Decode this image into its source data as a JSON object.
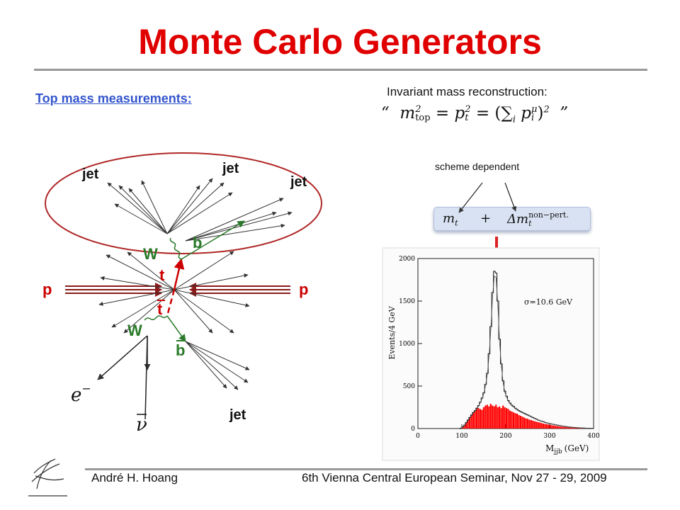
{
  "slide": {
    "title": "Monte Carlo Generators",
    "subtitle": "Top mass measurements:",
    "invariant_mass_label": "Invariant mass reconstruction:",
    "formula": {
      "open_quote": "“",
      "close_quote": "”",
      "m": "m",
      "m_sup": "2",
      "m_sub": "top",
      "eq": "=",
      "p": "p",
      "p_sub": "t",
      "p_sup": "2",
      "sum_open": "(∑",
      "sum_sub": "i",
      "p2": "p",
      "p2_sup": "μ",
      "p2_sub": "i",
      "close": ")",
      "close_sup": "2"
    },
    "scheme_label": "scheme dependent",
    "mass_expression": {
      "mt": "m",
      "mt_sub": "t",
      "plus": "+",
      "dmt": "Δm",
      "dmt_sub": "t",
      "dmt_sup": "non−pert."
    },
    "footer": {
      "author": "André H. Hoang",
      "seminar": "6th Vienna Central European Seminar, Nov 27 - 29, 2009"
    }
  },
  "diagram": {
    "labels": {
      "jet1": "jet",
      "jet2": "jet",
      "jet3": "jet",
      "jet4": "jet",
      "b": "b",
      "bbar": "b",
      "W1": "W",
      "W2": "W",
      "t": "t",
      "tbar": "t",
      "p_left": "p",
      "p_right": "p",
      "electron": "e",
      "electron_sup": "−",
      "neutrino": "ν"
    },
    "colors": {
      "ellipse": "#b02828",
      "beam": "#8b1a1a",
      "top": "#cc0000",
      "quark": "#2a7a2a",
      "lines": "#333333"
    }
  },
  "chart_data": {
    "type": "histogram",
    "annotation": "σ=10.6 GeV",
    "xlabel": "M",
    "xlabel_sub": "jjb",
    "xlabel_unit": "(GeV)",
    "ylabel": "Events/4 GeV",
    "xlim": [
      0,
      400
    ],
    "ylim": [
      0,
      2000
    ],
    "xticks": [
      "0",
      "100",
      "200",
      "300",
      "400"
    ],
    "yticks": [
      "0",
      "500",
      "1000",
      "1500",
      "2000"
    ],
    "bin_width": 4,
    "series": [
      {
        "style": "outline",
        "color": "#111111",
        "x": [
          96,
          100,
          104,
          108,
          112,
          116,
          120,
          124,
          128,
          132,
          136,
          140,
          144,
          148,
          152,
          156,
          160,
          164,
          168,
          172,
          176,
          180,
          184,
          188,
          192,
          196,
          200,
          204,
          208,
          212,
          216,
          220,
          224,
          228,
          232,
          236,
          240,
          244,
          248,
          252,
          256,
          260,
          264,
          268,
          272,
          276,
          280,
          284,
          288,
          292,
          296,
          300,
          304,
          308,
          312,
          316,
          320,
          324,
          328,
          332,
          336,
          340,
          344,
          348,
          352,
          356,
          360,
          364,
          368,
          372,
          376,
          380,
          384,
          388,
          392,
          396
        ],
        "values": [
          5,
          20,
          40,
          70,
          100,
          130,
          160,
          190,
          210,
          240,
          270,
          310,
          360,
          420,
          520,
          650,
          880,
          1200,
          1600,
          1850,
          1830,
          1500,
          1050,
          760,
          560,
          440,
          380,
          330,
          300,
          275,
          260,
          240,
          225,
          210,
          200,
          190,
          180,
          170,
          160,
          150,
          140,
          130,
          120,
          110,
          100,
          92,
          86,
          80,
          72,
          66,
          60,
          56,
          52,
          48,
          44,
          40,
          36,
          32,
          29,
          26,
          23,
          20,
          18,
          16,
          14,
          12,
          10,
          9,
          8,
          7,
          6,
          5,
          4,
          4,
          3,
          2
        ]
      },
      {
        "style": "filled",
        "color": "#ff0000",
        "x": [
          96,
          100,
          104,
          108,
          112,
          116,
          120,
          124,
          128,
          132,
          136,
          140,
          144,
          148,
          152,
          156,
          160,
          164,
          168,
          172,
          176,
          180,
          184,
          188,
          192,
          196,
          200,
          204,
          208,
          212,
          216,
          220,
          224,
          228,
          232,
          236,
          240,
          244,
          248,
          252,
          256,
          260,
          264,
          268,
          272,
          276,
          280,
          284,
          288,
          292,
          296,
          300,
          304,
          308,
          312,
          316,
          320,
          324,
          328,
          332,
          336,
          340,
          344,
          348,
          352,
          356,
          360,
          364,
          368,
          372,
          376,
          380,
          384,
          388,
          392,
          396
        ],
        "values": [
          5,
          20,
          40,
          70,
          100,
          130,
          160,
          190,
          210,
          240,
          240,
          230,
          220,
          250,
          270,
          280,
          260,
          290,
          270,
          260,
          280,
          250,
          260,
          240,
          270,
          250,
          240,
          230,
          210,
          200,
          190,
          180,
          175,
          160,
          150,
          140,
          130,
          120,
          115,
          105,
          100,
          92,
          86,
          80,
          75,
          70,
          64,
          58,
          54,
          50,
          46,
          42,
          38,
          35,
          32,
          29,
          26,
          23,
          21,
          19,
          17,
          15,
          13,
          11,
          10,
          9,
          8,
          7,
          6,
          5,
          4,
          4,
          3,
          3,
          2,
          2
        ]
      }
    ]
  }
}
